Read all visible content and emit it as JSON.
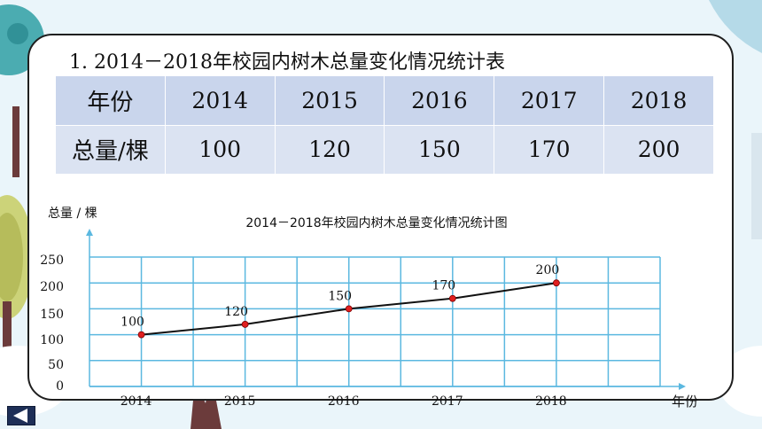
{
  "table": {
    "title": "1. 2014－2018年校园内树木总量变化情况统计表",
    "row_header_year": "年份",
    "row_header_total": "总量/棵",
    "years": [
      "2014",
      "2015",
      "2016",
      "2017",
      "2018"
    ],
    "totals": [
      "100",
      "120",
      "150",
      "170",
      "200"
    ]
  },
  "chart_data": {
    "type": "line",
    "title": "2014－2018年校园内树木总量变化情况统计图",
    "ylabel": "总量 / 棵",
    "xlabel": "年份",
    "x": [
      "2014",
      "2015",
      "2016",
      "2017",
      "2018"
    ],
    "values": [
      100,
      120,
      150,
      170,
      200
    ],
    "ytick_labels": [
      "250",
      "200",
      "150",
      "100",
      "50",
      "0"
    ],
    "ylim": [
      0,
      250
    ],
    "grid": true,
    "line_color": "#111111",
    "marker_color": "#e02020",
    "grid_color": "#5bb8e0"
  },
  "nav": {
    "icon": "back-arrow-icon",
    "color": "#1e2f57"
  }
}
